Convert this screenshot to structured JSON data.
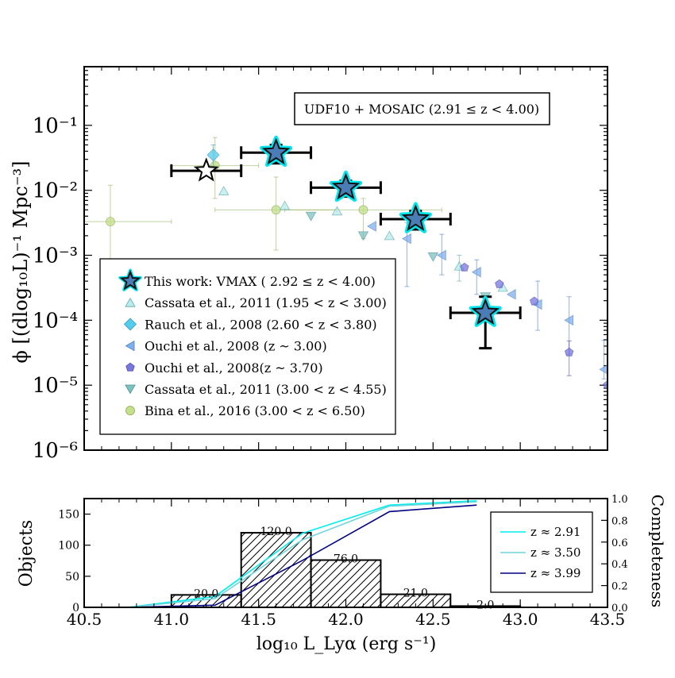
{
  "chart_data": [
    {
      "type": "scatter",
      "panel": "luminosity-function",
      "ylabel": "ϕ  [(dlog₁₀L)⁻¹ Mpc⁻³]",
      "xlim": [
        40.5,
        43.5
      ],
      "ylim": [
        1e-06,
        0.8
      ],
      "yscale": "log",
      "ytick_labels": [
        {
          "value": 0.1,
          "label": "10⁻¹"
        },
        {
          "value": 0.01,
          "label": "10⁻²"
        },
        {
          "value": 0.001,
          "label": "10⁻³"
        },
        {
          "value": 0.0001,
          "label": "10⁻⁴"
        },
        {
          "value": 1e-05,
          "label": "10⁻⁵"
        },
        {
          "value": 1e-06,
          "label": "10⁻⁶"
        }
      ],
      "annotation": "UDF10 + MOSAIC (2.91 ≤ z < 4.00)",
      "legend_position": "lower-left",
      "series": [
        {
          "name": "This work: VMAX ( 2.92 ≤ z < 4.00)",
          "marker": "star",
          "color": "#4a7db5",
          "edge_color": "#00e5ee",
          "points": [
            {
              "x": 41.6,
              "y": 0.038,
              "xerr": 0.2,
              "ylo": 0.026,
              "yhi": 0.05
            },
            {
              "x": 42.0,
              "y": 0.011,
              "xerr": 0.2,
              "ylo": 0.008,
              "yhi": 0.014
            },
            {
              "x": 42.4,
              "y": 0.0036,
              "xerr": 0.2,
              "ylo": 0.0025,
              "yhi": 0.0048
            },
            {
              "x": 42.8,
              "y": 0.00013,
              "xerr": 0.2,
              "ylo": 3.7e-05,
              "yhi": 0.00023
            }
          ]
        },
        {
          "name": "This work: VMAX incomplete bin",
          "marker": "star-open",
          "color": "#ffffff",
          "edge_color": "#000000",
          "points": [
            {
              "x": 41.2,
              "y": 0.02,
              "xerr": 0.2,
              "ylo": 0.02,
              "yhi": 0.02
            }
          ]
        },
        {
          "name": "Cassata et al., 2011 (1.95 < z < 3.00)",
          "marker": "triangle-up",
          "color": "#b8ecec",
          "edge_color": "#5fa8a8",
          "points": [
            {
              "x": 41.3,
              "y": 0.0098
            },
            {
              "x": 41.65,
              "y": 0.0058
            },
            {
              "x": 41.95,
              "y": 0.0048
            },
            {
              "x": 42.25,
              "y": 0.002
            },
            {
              "x": 42.65,
              "y": 0.00068,
              "ylo": 0.0004,
              "yhi": 0.001
            },
            {
              "x": 42.9,
              "y": 0.00032
            }
          ]
        },
        {
          "name": "Rauch et al., 2008 (2.60 < z < 3.80)",
          "marker": "diamond",
          "color": "#55ccee",
          "edge_color": "#3399bb",
          "points": [
            {
              "x": 41.24,
              "y": 0.035,
              "ylo": 0.022,
              "yhi": 0.05
            }
          ]
        },
        {
          "name": "Ouchi et al., 2008 (z ~ 3.00)",
          "marker": "triangle-left",
          "color": "#7fb0ee",
          "edge_color": "#5080c0",
          "points": [
            {
              "x": 42.15,
              "y": 0.0028
            },
            {
              "x": 42.35,
              "y": 0.0018,
              "ylo": 0.00033,
              "yhi": 0.0032
            },
            {
              "x": 42.55,
              "y": 0.001,
              "ylo": 0.0005,
              "yhi": 0.0021
            },
            {
              "x": 42.75,
              "y": 0.00055,
              "ylo": 0.00025,
              "yhi": 0.00085
            },
            {
              "x": 42.95,
              "y": 0.00025
            },
            {
              "x": 43.1,
              "y": 0.000175,
              "ylo": 7e-05,
              "yhi": 0.0004
            },
            {
              "x": 43.28,
              "y": 0.0001,
              "ylo": 3e-05,
              "yhi": 0.00023
            },
            {
              "x": 43.48,
              "y": 1.75e-05,
              "ylo": 1.25e-05,
              "yhi": 4.9e-05
            }
          ]
        },
        {
          "name": "Ouchi et al., 2008(z ~ 3.70)",
          "marker": "pentagon",
          "color": "#7777dd",
          "edge_color": "#4b4bb0",
          "points": [
            {
              "x": 42.68,
              "y": 0.00065
            },
            {
              "x": 42.88,
              "y": 0.00036
            },
            {
              "x": 43.08,
              "y": 0.000195
            },
            {
              "x": 43.28,
              "y": 3.2e-05,
              "ylo": 1.4e-05,
              "yhi": 4.8e-05
            },
            {
              "x": 43.5,
              "y": 1e-05
            }
          ]
        },
        {
          "name": "Cassata et al., 2011 (3.00 < z < 4.55)",
          "marker": "triangle-down",
          "color": "#7fc2c2",
          "edge_color": "#4a9090",
          "points": [
            {
              "x": 41.8,
              "y": 0.004
            },
            {
              "x": 42.1,
              "y": 0.002
            },
            {
              "x": 42.5,
              "y": 0.00095
            },
            {
              "x": 42.8,
              "y": 0.00023
            }
          ]
        },
        {
          "name": "Bina et al., 2016 (3.00 < z < 6.50)",
          "marker": "circle",
          "color": "#c4e08a",
          "edge_color": "#8fae55",
          "points": [
            {
              "x": 40.65,
              "y": 0.0033,
              "xerr": 0.35,
              "ylo": 0.00085,
              "yhi": 0.012
            },
            {
              "x": 41.25,
              "y": 0.024,
              "xerr": 0.25,
              "ylo": 0.0075,
              "yhi": 0.065
            },
            {
              "x": 41.6,
              "y": 0.005,
              "xerr": 0.35,
              "ylo": 0.0012,
              "yhi": 0.016
            },
            {
              "x": 42.1,
              "y": 0.005,
              "xerr": 0.45,
              "ylo": 0.0018,
              "yhi": 0.0075
            }
          ]
        }
      ]
    },
    {
      "type": "bar",
      "panel": "histogram-completeness",
      "xlabel": "log₁₀ L_Lyα (erg s⁻¹)",
      "ylabel": "Objects",
      "y2label": "Completeness",
      "xlim": [
        40.5,
        43.5
      ],
      "ylim": [
        0,
        175
      ],
      "y2lim": [
        0,
        1.0
      ],
      "xtick_labels": [
        "40.5",
        "41.0",
        "41.5",
        "42.0",
        "42.5",
        "43.0",
        "43.5"
      ],
      "ytick_labels": [
        "0",
        "50",
        "100",
        "150"
      ],
      "y2tick_labels": [
        "0.0",
        "0.2",
        "0.4",
        "0.6",
        "0.8",
        "1.0"
      ],
      "hatch": "diagonal",
      "legend_position": "upper-right",
      "bins": [
        {
          "x0": 41.0,
          "x1": 41.4,
          "value": 20,
          "label": "20.0"
        },
        {
          "x0": 41.4,
          "x1": 41.8,
          "value": 120,
          "label": "120.0"
        },
        {
          "x0": 41.8,
          "x1": 42.2,
          "value": 76,
          "label": "76.0"
        },
        {
          "x0": 42.2,
          "x1": 42.6,
          "value": 21,
          "label": "21.0"
        },
        {
          "x0": 42.6,
          "x1": 43.0,
          "value": 2,
          "label": "2.0"
        }
      ],
      "series": [
        {
          "name": "z ≈ 2.91",
          "color": "#00eeee",
          "x": [
            40.75,
            41.25,
            41.75,
            42.25,
            42.75
          ],
          "y": [
            0.0,
            0.1,
            0.68,
            0.94,
            0.98
          ]
        },
        {
          "name": "z ≈ 3.50",
          "color": "#6fd6dc",
          "x": [
            40.75,
            41.25,
            41.75,
            42.25,
            42.75
          ],
          "y": [
            0.0,
            0.08,
            0.62,
            0.93,
            0.97
          ]
        },
        {
          "name": "z ≈ 3.99",
          "color": "#000080",
          "x": [
            40.75,
            41.25,
            41.75,
            42.25,
            42.75
          ],
          "y": [
            0.0,
            0.02,
            0.43,
            0.88,
            0.94
          ]
        }
      ]
    }
  ]
}
